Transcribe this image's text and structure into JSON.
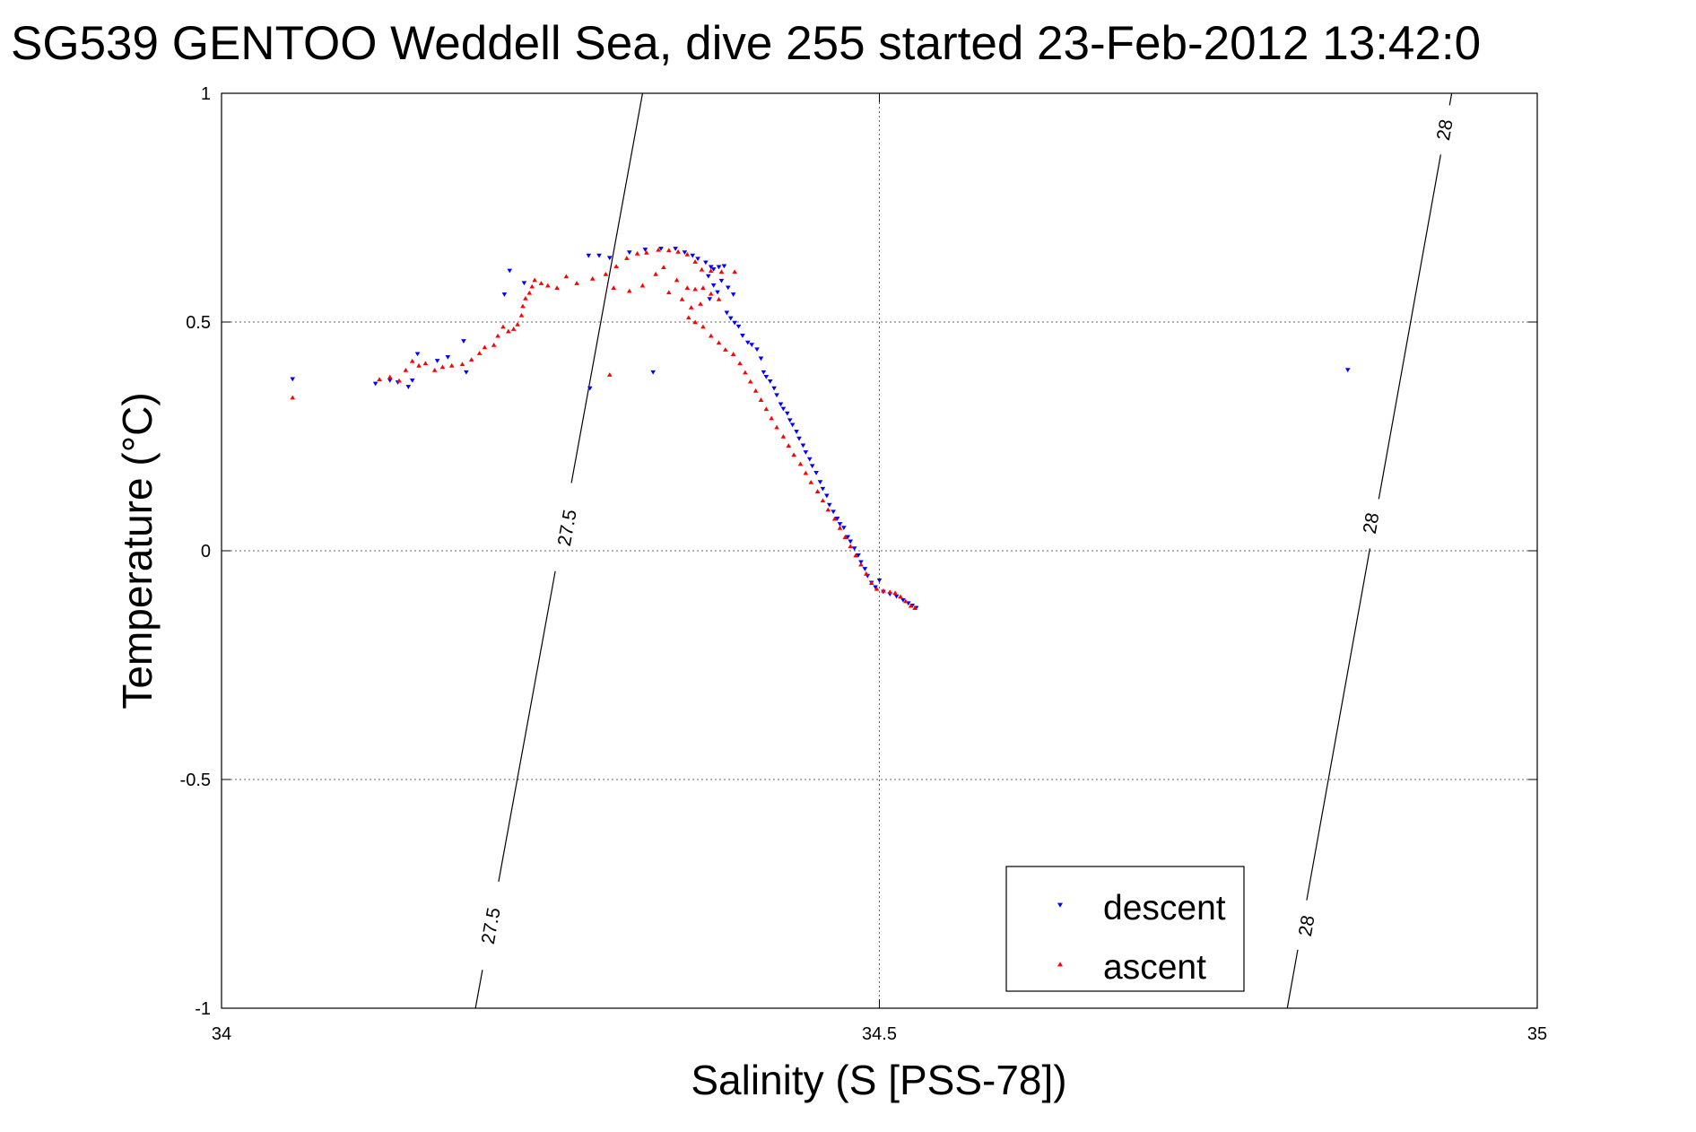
{
  "chart_data": {
    "type": "scatter",
    "title": "SG539 GENTOO Weddell Sea, dive 255 started 23-Feb-2012 13:42:0",
    "xlabel": "Salinity (S [PSS-78])",
    "ylabel": "Temperature (°C)",
    "xlim": [
      34,
      35
    ],
    "ylim": [
      -1,
      1
    ],
    "xticks": [
      34,
      34.5,
      35
    ],
    "xtick_labels": [
      "34",
      "34.5",
      "35"
    ],
    "yticks": [
      -1,
      -0.5,
      0,
      0.5,
      1
    ],
    "ytick_labels": [
      "-1",
      "-0.5",
      "0",
      "0.5",
      "1"
    ],
    "grid": true,
    "legend_position": "bottom-right",
    "isopycnals": [
      {
        "value": 27.5,
        "points": [
          [
            34.193,
            -1.0
          ],
          [
            34.32,
            1.0
          ]
        ],
        "labels": [
          {
            "text": "27.5",
            "x": 34.205,
            "y": -0.82
          },
          {
            "text": "27.5",
            "x": 34.263,
            "y": 0.05
          }
        ]
      },
      {
        "value": 28,
        "points": [
          [
            34.81,
            -1.0
          ],
          [
            34.935,
            1.0
          ]
        ],
        "labels": [
          {
            "text": "28",
            "x": 34.825,
            "y": -0.82
          },
          {
            "text": "28",
            "x": 34.874,
            "y": 0.06
          },
          {
            "text": "28",
            "x": 34.93,
            "y": 0.92
          }
        ]
      }
    ],
    "series": [
      {
        "name": "descent",
        "color": "#0000ff",
        "marker": "triangle-down",
        "points": [
          [
            34.054,
            0.375
          ],
          [
            34.117,
            0.365
          ],
          [
            34.128,
            0.372
          ],
          [
            34.134,
            0.368
          ],
          [
            34.142,
            0.358
          ],
          [
            34.145,
            0.372
          ],
          [
            34.149,
            0.43
          ],
          [
            34.164,
            0.415
          ],
          [
            34.172,
            0.423
          ],
          [
            34.184,
            0.458
          ],
          [
            34.186,
            0.39
          ],
          [
            34.219,
            0.612
          ],
          [
            34.215,
            0.56
          ],
          [
            34.23,
            0.585
          ],
          [
            34.279,
            0.645
          ],
          [
            34.287,
            0.645
          ],
          [
            34.295,
            0.64
          ],
          [
            34.28,
            0.355
          ],
          [
            34.31,
            0.652
          ],
          [
            34.322,
            0.658
          ],
          [
            34.334,
            0.66
          ],
          [
            34.345,
            0.66
          ],
          [
            34.352,
            0.652
          ],
          [
            34.358,
            0.645
          ],
          [
            34.362,
            0.638
          ],
          [
            34.368,
            0.63
          ],
          [
            34.372,
            0.62
          ],
          [
            34.374,
            0.615
          ],
          [
            34.378,
            0.62
          ],
          [
            34.382,
            0.622
          ],
          [
            34.37,
            0.6
          ],
          [
            34.374,
            0.58
          ],
          [
            34.377,
            0.565
          ],
          [
            34.38,
            0.59
          ],
          [
            34.385,
            0.575
          ],
          [
            34.389,
            0.56
          ],
          [
            34.371,
            0.55
          ],
          [
            34.384,
            0.52
          ],
          [
            34.387,
            0.508
          ],
          [
            34.39,
            0.498
          ],
          [
            34.393,
            0.49
          ],
          [
            34.396,
            0.47
          ],
          [
            34.4,
            0.455
          ],
          [
            34.403,
            0.45
          ],
          [
            34.407,
            0.44
          ],
          [
            34.41,
            0.42
          ],
          [
            34.412,
            0.39
          ],
          [
            34.414,
            0.38
          ],
          [
            34.417,
            0.37
          ],
          [
            34.42,
            0.355
          ],
          [
            34.422,
            0.34
          ],
          [
            34.425,
            0.32
          ],
          [
            34.427,
            0.31
          ],
          [
            34.43,
            0.3
          ],
          [
            34.432,
            0.285
          ],
          [
            34.434,
            0.275
          ],
          [
            34.437,
            0.26
          ],
          [
            34.439,
            0.245
          ],
          [
            34.442,
            0.23
          ],
          [
            34.444,
            0.215
          ],
          [
            34.447,
            0.2
          ],
          [
            34.449,
            0.185
          ],
          [
            34.452,
            0.17
          ],
          [
            34.455,
            0.15
          ],
          [
            34.457,
            0.135
          ],
          [
            34.46,
            0.12
          ],
          [
            34.462,
            0.1
          ],
          [
            34.465,
            0.085
          ],
          [
            34.468,
            0.07
          ],
          [
            34.47,
            0.058
          ],
          [
            34.473,
            0.05
          ],
          [
            34.476,
            0.03
          ],
          [
            34.478,
            0.02
          ],
          [
            34.481,
            0.005
          ],
          [
            34.484,
            -0.01
          ],
          [
            34.486,
            -0.025
          ],
          [
            34.489,
            -0.04
          ],
          [
            34.491,
            -0.055
          ],
          [
            34.494,
            -0.07
          ],
          [
            34.497,
            -0.08
          ],
          [
            34.5,
            -0.065
          ],
          [
            34.503,
            -0.09
          ],
          [
            34.508,
            -0.095
          ],
          [
            34.513,
            -0.1
          ],
          [
            34.518,
            -0.108
          ],
          [
            34.522,
            -0.115
          ],
          [
            34.525,
            -0.12
          ],
          [
            34.528,
            -0.125
          ],
          [
            34.328,
            0.39
          ],
          [
            34.856,
            0.395
          ]
        ]
      },
      {
        "name": "ascent",
        "color": "#ff0000",
        "marker": "triangle-up",
        "points": [
          [
            34.054,
            0.335
          ],
          [
            34.12,
            0.375
          ],
          [
            34.128,
            0.38
          ],
          [
            34.135,
            0.372
          ],
          [
            34.14,
            0.395
          ],
          [
            34.145,
            0.415
          ],
          [
            34.15,
            0.405
          ],
          [
            34.155,
            0.41
          ],
          [
            34.162,
            0.395
          ],
          [
            34.168,
            0.402
          ],
          [
            34.175,
            0.405
          ],
          [
            34.183,
            0.408
          ],
          [
            34.19,
            0.418
          ],
          [
            34.196,
            0.432
          ],
          [
            34.2,
            0.445
          ],
          [
            34.207,
            0.45
          ],
          [
            34.21,
            0.47
          ],
          [
            34.214,
            0.49
          ],
          [
            34.218,
            0.48
          ],
          [
            34.222,
            0.485
          ],
          [
            34.225,
            0.495
          ],
          [
            34.228,
            0.515
          ],
          [
            34.229,
            0.535
          ],
          [
            34.231,
            0.552
          ],
          [
            34.234,
            0.564
          ],
          [
            34.236,
            0.578
          ],
          [
            34.238,
            0.592
          ],
          [
            34.243,
            0.585
          ],
          [
            34.248,
            0.58
          ],
          [
            34.255,
            0.575
          ],
          [
            34.262,
            0.6
          ],
          [
            34.27,
            0.585
          ],
          [
            34.282,
            0.595
          ],
          [
            34.292,
            0.605
          ],
          [
            34.3,
            0.622
          ],
          [
            34.308,
            0.64
          ],
          [
            34.316,
            0.65
          ],
          [
            34.323,
            0.652
          ],
          [
            34.332,
            0.658
          ],
          [
            34.34,
            0.657
          ],
          [
            34.347,
            0.654
          ],
          [
            34.354,
            0.648
          ],
          [
            34.36,
            0.632
          ],
          [
            34.365,
            0.615
          ],
          [
            34.372,
            0.612
          ],
          [
            34.38,
            0.61
          ],
          [
            34.39,
            0.61
          ],
          [
            34.298,
            0.575
          ],
          [
            34.31,
            0.568
          ],
          [
            34.32,
            0.58
          ],
          [
            34.33,
            0.605
          ],
          [
            34.336,
            0.62
          ],
          [
            34.346,
            0.592
          ],
          [
            34.354,
            0.575
          ],
          [
            34.36,
            0.572
          ],
          [
            34.366,
            0.575
          ],
          [
            34.372,
            0.562
          ],
          [
            34.378,
            0.55
          ],
          [
            34.364,
            0.54
          ],
          [
            34.357,
            0.532
          ],
          [
            34.35,
            0.55
          ],
          [
            34.34,
            0.565
          ],
          [
            34.355,
            0.51
          ],
          [
            34.36,
            0.5
          ],
          [
            34.366,
            0.49
          ],
          [
            34.372,
            0.47
          ],
          [
            34.378,
            0.455
          ],
          [
            34.383,
            0.44
          ],
          [
            34.389,
            0.43
          ],
          [
            34.394,
            0.41
          ],
          [
            34.398,
            0.39
          ],
          [
            34.402,
            0.37
          ],
          [
            34.406,
            0.35
          ],
          [
            34.41,
            0.33
          ],
          [
            34.414,
            0.31
          ],
          [
            34.418,
            0.29
          ],
          [
            34.422,
            0.27
          ],
          [
            34.427,
            0.25
          ],
          [
            34.431,
            0.23
          ],
          [
            34.435,
            0.21
          ],
          [
            34.44,
            0.19
          ],
          [
            34.444,
            0.17
          ],
          [
            34.448,
            0.15
          ],
          [
            34.453,
            0.13
          ],
          [
            34.457,
            0.11
          ],
          [
            34.461,
            0.09
          ],
          [
            34.466,
            0.07
          ],
          [
            34.47,
            0.05
          ],
          [
            34.474,
            0.03
          ],
          [
            34.478,
            0.01
          ],
          [
            34.482,
            -0.01
          ],
          [
            34.486,
            -0.03
          ],
          [
            34.49,
            -0.05
          ],
          [
            34.494,
            -0.07
          ],
          [
            34.498,
            -0.083
          ],
          [
            34.503,
            -0.087
          ],
          [
            34.508,
            -0.09
          ],
          [
            34.512,
            -0.092
          ],
          [
            34.516,
            -0.1
          ],
          [
            34.52,
            -0.11
          ],
          [
            34.524,
            -0.12
          ],
          [
            34.527,
            -0.125
          ],
          [
            34.295,
            0.385
          ]
        ]
      }
    ],
    "legend": [
      {
        "label": "descent",
        "color": "#0000ff",
        "marker": "triangle-down"
      },
      {
        "label": "ascent",
        "color": "#ff0000",
        "marker": "triangle-up"
      }
    ]
  }
}
